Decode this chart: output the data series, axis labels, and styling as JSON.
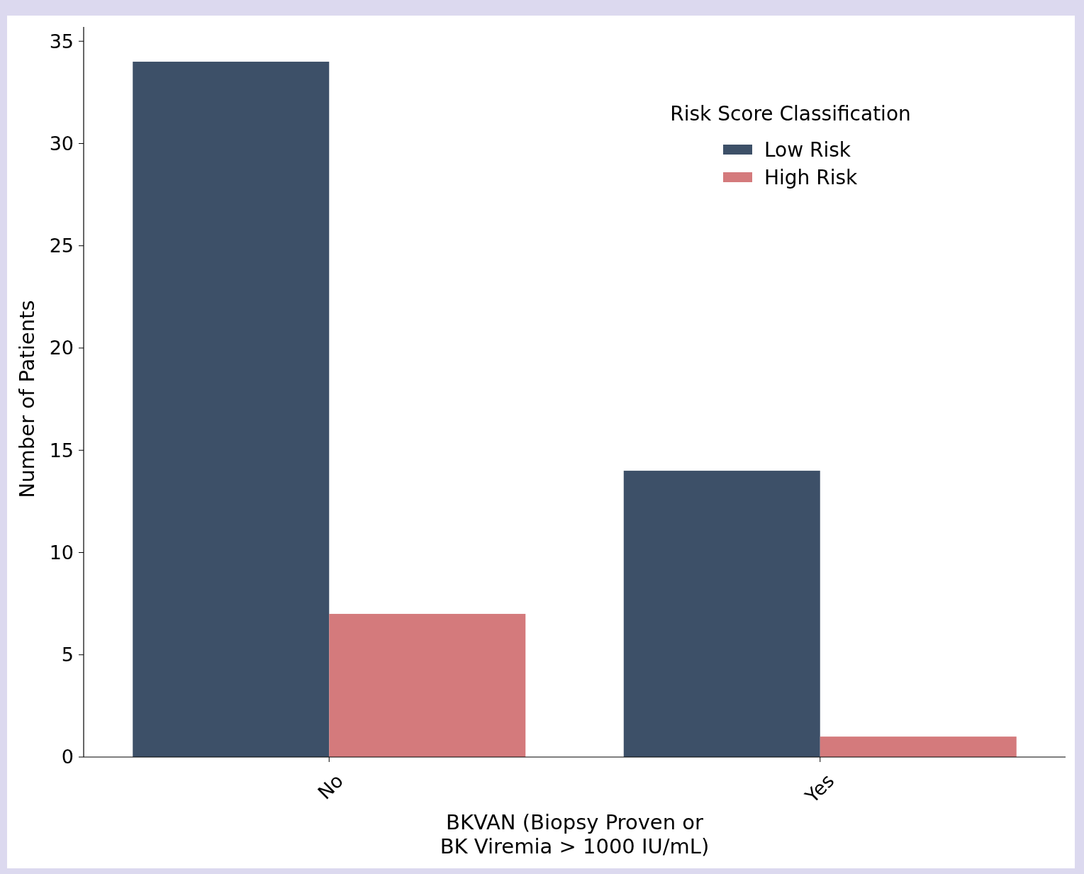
{
  "chart_data": {
    "type": "bar",
    "xlabel": "BKVAN (Biopsy Proven or\nBK Viremia > 1000 IU/mL)",
    "ylabel": "Number of Patients",
    "legend_title": "Risk Score Classification",
    "categories": [
      "No",
      "Yes"
    ],
    "series": [
      {
        "name": "Low Risk",
        "color": "#3d5068",
        "values": [
          34,
          14
        ]
      },
      {
        "name": "High Risk",
        "color": "#d47a7c",
        "values": [
          7,
          1
        ]
      }
    ],
    "ylim": [
      0,
      35.7
    ],
    "yticks": [
      0,
      5,
      10,
      15,
      20,
      25,
      30,
      35
    ],
    "legend": "top right",
    "grid": false
  }
}
